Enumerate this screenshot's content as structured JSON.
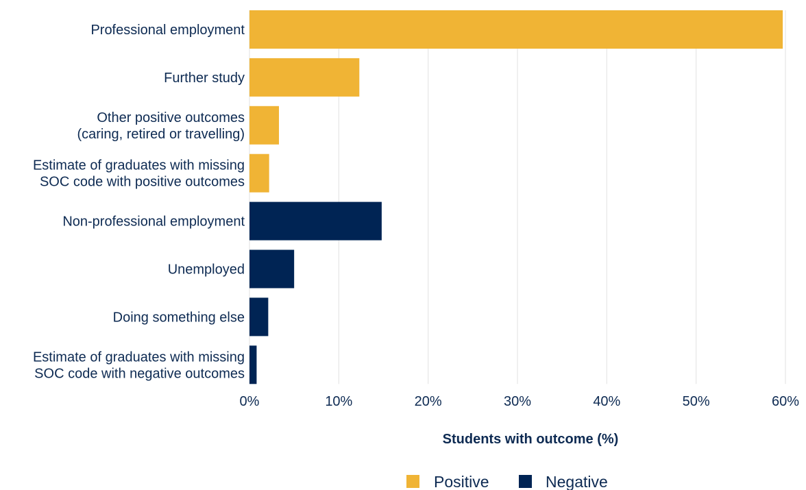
{
  "chart_data": {
    "type": "bar",
    "orientation": "horizontal",
    "categories": [
      [
        "Professional employment"
      ],
      [
        "Further study"
      ],
      [
        "Other positive outcomes",
        "(caring, retired or travelling)"
      ],
      [
        "Estimate of graduates with missing",
        "SOC code with positive outcomes"
      ],
      [
        "Non-professional employment"
      ],
      [
        "Unemployed"
      ],
      [
        "Doing something else"
      ],
      [
        "Estimate of graduates with missing",
        "SOC code with negative outcomes"
      ]
    ],
    "values": [
      59.7,
      12.3,
      3.3,
      2.2,
      14.8,
      5.0,
      2.1,
      0.8
    ],
    "groups": [
      "Positive",
      "Positive",
      "Positive",
      "Positive",
      "Negative",
      "Negative",
      "Negative",
      "Negative"
    ],
    "legend": [
      {
        "name": "Positive",
        "color": "#f0b435"
      },
      {
        "name": "Negative",
        "color": "#002454"
      }
    ],
    "xlabel": "Students with outcome (%)",
    "ylabel": "",
    "xlim": [
      0,
      60
    ],
    "xticks": [
      0,
      10,
      20,
      30,
      40,
      50,
      60
    ],
    "tick_suffix": "%",
    "grid": "vertical",
    "legend_position": "bottom"
  }
}
